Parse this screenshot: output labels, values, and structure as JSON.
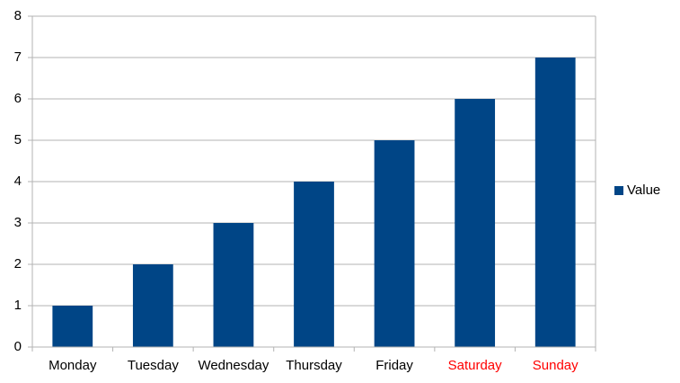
{
  "chart_data": {
    "type": "bar",
    "categories": [
      "Monday",
      "Tuesday",
      "Wednesday",
      "Thursday",
      "Friday",
      "Saturday",
      "Sunday"
    ],
    "category_colors": [
      "#000000",
      "#000000",
      "#000000",
      "#000000",
      "#000000",
      "#ff0000",
      "#ff0000"
    ],
    "series": [
      {
        "name": "Value",
        "color": "#004586",
        "values": [
          1,
          2,
          3,
          4,
          5,
          6,
          7
        ]
      }
    ],
    "ylim": [
      0,
      8
    ],
    "yticks": [
      0,
      1,
      2,
      3,
      4,
      5,
      6,
      7,
      8
    ],
    "grid": true,
    "legend": "right"
  }
}
